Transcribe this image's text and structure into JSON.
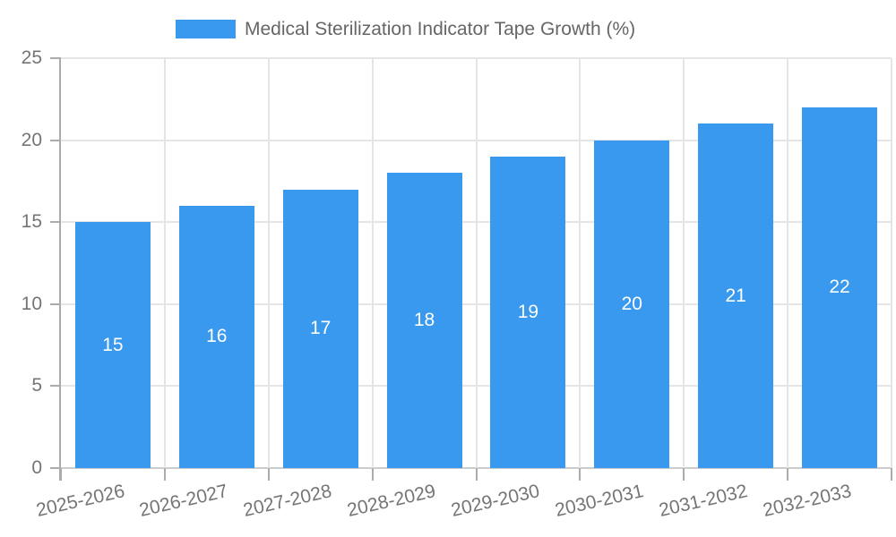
{
  "chart_data": {
    "type": "bar",
    "title": "Medical Sterilization Indicator Tape Growth (%)",
    "categories": [
      "2025-2026",
      "2026-2027",
      "2027-2028",
      "2028-2029",
      "2029-2030",
      "2030-2031",
      "2031-2032",
      "2032-2033"
    ],
    "values": [
      15,
      16,
      17,
      18,
      19,
      20,
      21,
      22
    ],
    "xlabel": "",
    "ylabel": "",
    "ylim": [
      0,
      25
    ],
    "yticks": [
      0,
      5,
      10,
      15,
      20,
      25
    ],
    "grid": true,
    "legend_position": "top",
    "colors": {
      "bar": "#3999EE",
      "bar_value_label": "#FFFFFF",
      "grid_line": "#E5E5E5",
      "zero_line": "#CCCCCC",
      "axis_line": "#ABABAB",
      "tick_mark": "#ABABAB",
      "tick_text": "#757575",
      "legend_text": "#666666"
    }
  }
}
